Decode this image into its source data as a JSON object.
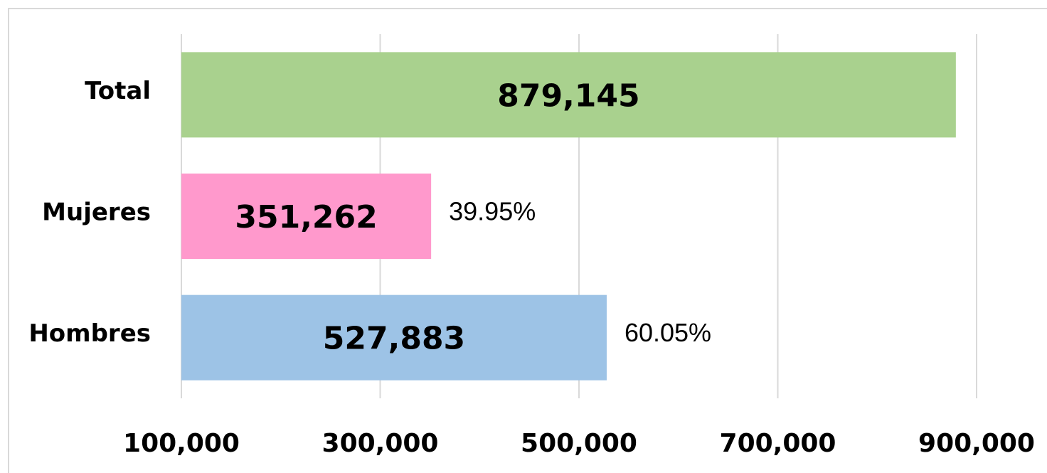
{
  "chart_data": {
    "type": "hbar",
    "categories": [
      "Total",
      "Mujeres",
      "Hombres"
    ],
    "values": [
      879145,
      351262,
      527883
    ],
    "value_labels": [
      "879,145",
      "351,262",
      "527,883"
    ],
    "colors": [
      "#a9d18e",
      "#ff99cc",
      "#9dc3e6"
    ],
    "annotations": [
      {
        "category": "Mujeres",
        "text": "39.95%"
      },
      {
        "category": "Hombres",
        "text": "60.05%"
      }
    ],
    "xlim": [
      100000,
      900000
    ],
    "xticks": [
      {
        "value": 100000,
        "label": "100,000"
      },
      {
        "value": 300000,
        "label": "300,000"
      },
      {
        "value": 500000,
        "label": "500,000"
      },
      {
        "value": 700000,
        "label": "700,000"
      },
      {
        "value": 900000,
        "label": "900,000"
      }
    ],
    "grid": true
  }
}
